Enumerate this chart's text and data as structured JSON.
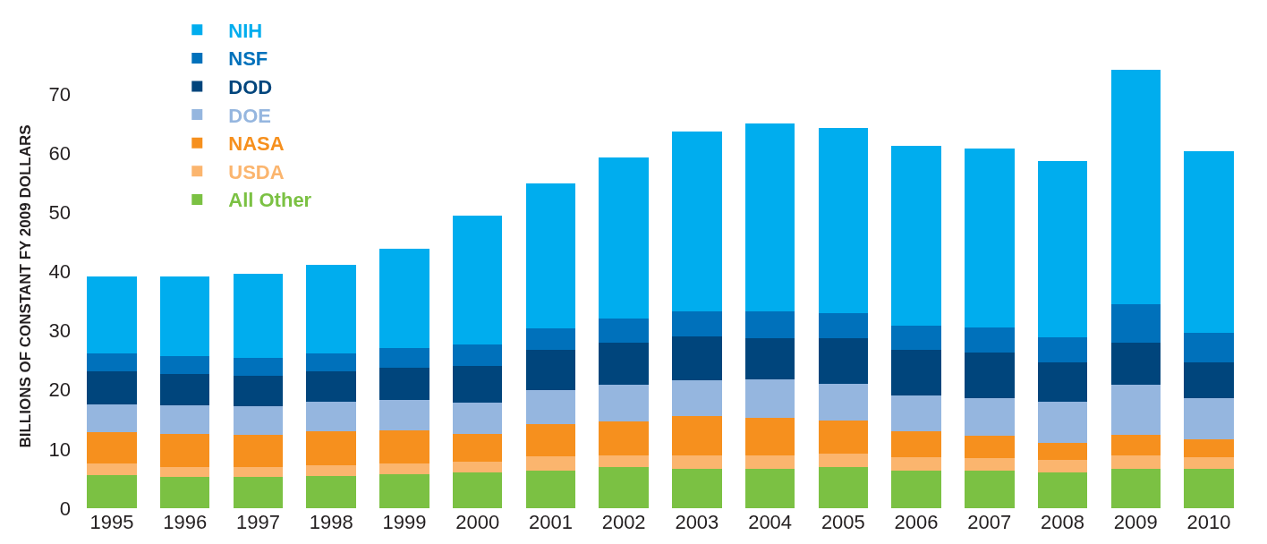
{
  "chart_data": {
    "type": "bar",
    "stacked": true,
    "ylabel": "BILLIONS OF CONSTANT FY 2009 DOLLARS",
    "categories": [
      "1995",
      "1996",
      "1997",
      "1998",
      "1999",
      "2000",
      "2001",
      "2002",
      "2003",
      "2004",
      "2005",
      "2006",
      "2007",
      "2008",
      "2009",
      "2010"
    ],
    "series": [
      {
        "name": "All Other",
        "color": "#7bc143",
        "values": [
          5.6,
          5.3,
          5.3,
          5.4,
          5.7,
          6.0,
          6.4,
          6.9,
          6.6,
          6.6,
          7.0,
          6.4,
          6.3,
          6.1,
          6.7,
          6.6
        ]
      },
      {
        "name": "USDA",
        "color": "#fbb56e",
        "values": [
          1.9,
          1.7,
          1.6,
          1.8,
          1.8,
          1.9,
          2.4,
          2.0,
          2.3,
          2.3,
          2.2,
          2.2,
          2.2,
          2.1,
          2.2,
          2.0
        ]
      },
      {
        "name": "NASA",
        "color": "#f6901e",
        "values": [
          5.4,
          5.6,
          5.5,
          5.8,
          5.7,
          4.7,
          5.4,
          5.7,
          6.6,
          6.4,
          5.6,
          4.4,
          3.8,
          2.9,
          3.5,
          3.1
        ]
      },
      {
        "name": "DOE",
        "color": "#95b6df",
        "values": [
          4.6,
          4.8,
          4.8,
          5.0,
          5.1,
          5.2,
          5.8,
          6.2,
          6.1,
          6.5,
          6.2,
          6.1,
          6.3,
          6.9,
          8.4,
          6.9
        ]
      },
      {
        "name": "DOD",
        "color": "#00457c",
        "values": [
          5.7,
          5.3,
          5.2,
          5.2,
          5.5,
          6.3,
          6.7,
          7.1,
          7.5,
          7.0,
          7.8,
          7.6,
          7.7,
          6.7,
          7.1,
          6.0
        ]
      },
      {
        "name": "NSF",
        "color": "#0071bb",
        "values": [
          3.0,
          3.0,
          3.0,
          3.0,
          3.2,
          3.5,
          3.7,
          4.1,
          4.2,
          4.5,
          4.2,
          4.1,
          4.2,
          4.2,
          6.6,
          5.1
        ]
      },
      {
        "name": "NIH",
        "color": "#00adee",
        "values": [
          13.0,
          13.5,
          14.2,
          14.9,
          16.8,
          21.8,
          24.5,
          27.3,
          30.3,
          31.7,
          31.3,
          30.4,
          30.3,
          29.7,
          39.6,
          30.7
        ]
      }
    ],
    "ylim": [
      0,
      75
    ],
    "yticks": [
      0,
      10,
      20,
      30,
      40,
      50,
      60,
      70
    ],
    "legend": "top left"
  }
}
